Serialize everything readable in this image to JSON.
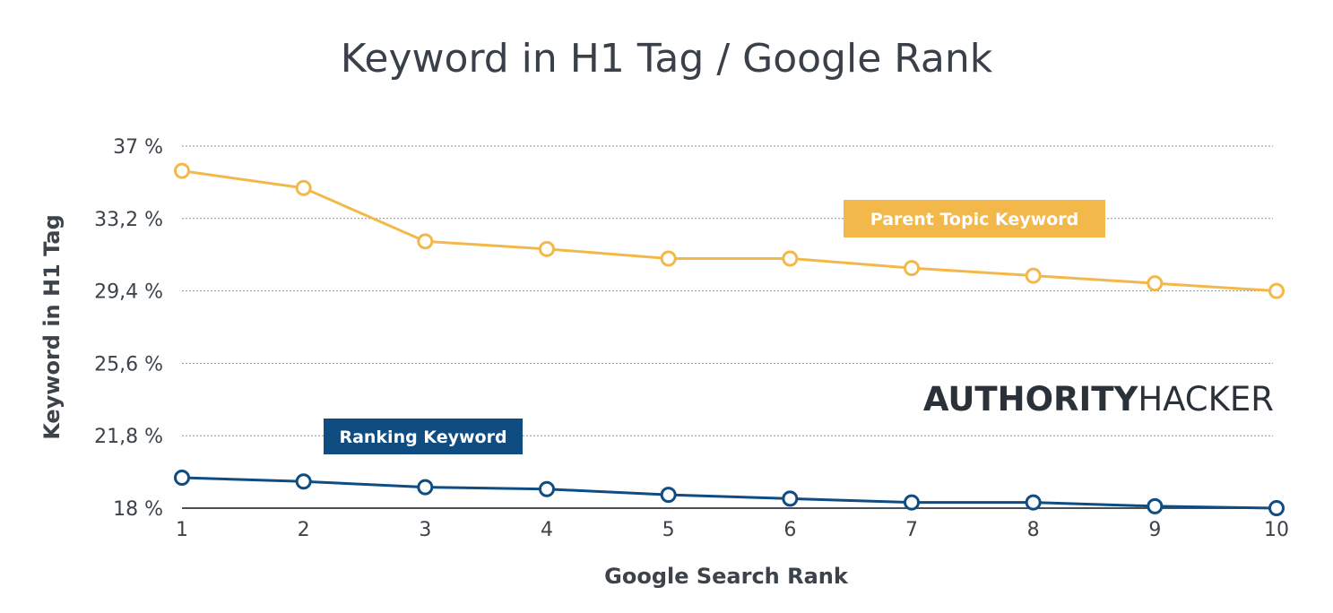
{
  "chart_data": {
    "type": "line",
    "title": "Keyword in H1 Tag / Google Rank",
    "xlabel": "Google Search Rank",
    "ylabel": "Keyword in H1 Tag",
    "x": [
      1,
      2,
      3,
      4,
      5,
      6,
      7,
      8,
      9,
      10
    ],
    "x_tick_labels": [
      "1",
      "2",
      "3",
      "4",
      "5",
      "6",
      "7",
      "8",
      "9",
      "10"
    ],
    "y_ticks": [
      18,
      21.8,
      25.6,
      29.4,
      33.2,
      37
    ],
    "y_tick_labels": [
      "18 %",
      "21,8 %",
      "25,6 %",
      "29,4 %",
      "33,2 %",
      "37 %"
    ],
    "ylim": [
      18,
      37
    ],
    "grid": "horizontal dotted",
    "series": [
      {
        "name": "Parent Topic Keyword",
        "color": "#f2b94a",
        "values": [
          35.7,
          34.8,
          32.0,
          31.6,
          31.1,
          31.1,
          30.6,
          30.2,
          29.8,
          29.4
        ]
      },
      {
        "name": "Ranking Keyword",
        "color": "#0f4c81",
        "values": [
          19.6,
          19.4,
          19.1,
          19.0,
          18.7,
          18.5,
          18.3,
          18.3,
          18.1,
          18.0
        ]
      }
    ]
  },
  "branding": {
    "bold": "AUTHORITY",
    "regular": "HACKER"
  }
}
